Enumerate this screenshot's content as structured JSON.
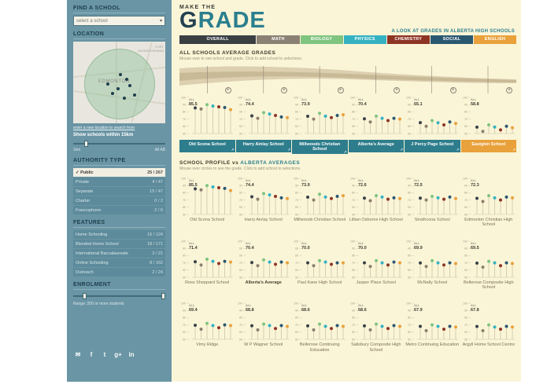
{
  "colors": {
    "sidebar_bg": "#6a95a4",
    "main_bg": "#fbf5d8",
    "teal": "#2a7f8e",
    "orange": "#e9a13b",
    "ribbon_light": "#dcd0b0",
    "ribbon_dark": "#c9ba97"
  },
  "subjects": [
    {
      "name": "overall",
      "color": "#3a4148"
    },
    {
      "name": "math",
      "color": "#8d7e6d"
    },
    {
      "name": "biology",
      "color": "#7fc47f"
    },
    {
      "name": "physics",
      "color": "#35b2c2"
    },
    {
      "name": "chemistry",
      "color": "#8e3424"
    },
    {
      "name": "social",
      "color": "#2b5871"
    },
    {
      "name": "english",
      "color": "#e9a13b"
    }
  ],
  "sidebar": {
    "find_school": {
      "title": "FIND A SCHOOL",
      "placeholder": "select a school"
    },
    "location": {
      "title": "LOCATION",
      "map_city": "EDMONTON",
      "map_region": "FORT SASKATCHEWAN",
      "new_location_link": "enter a new location to search from",
      "radius_text": "Show schools within 15km",
      "slider_min": "1km",
      "slider_max": "All AB"
    },
    "authority": {
      "title": "AUTHORITY TYPE",
      "items": [
        {
          "label": "Public",
          "count": "25 / 267",
          "checked": true
        },
        {
          "label": "Private",
          "count": "4 / 47",
          "checked": false
        },
        {
          "label": "Separate",
          "count": "15 / 47",
          "checked": false
        },
        {
          "label": "Charter",
          "count": "0 / 2",
          "checked": false
        },
        {
          "label": "Francophone",
          "count": "2 / 6",
          "checked": false
        }
      ]
    },
    "features": {
      "title": "FEATURES",
      "items": [
        {
          "label": "Home Schooling",
          "count": "16 / 124",
          "checked": false
        },
        {
          "label": "Blended Home School",
          "count": "18 / 171",
          "checked": false
        },
        {
          "label": "International Baccalaureate",
          "count": "3 / 21",
          "checked": false
        },
        {
          "label": "Online Schooling",
          "count": "8 / 162",
          "checked": false
        },
        {
          "label": "Outreach",
          "count": "2 / 24",
          "checked": false
        }
      ]
    },
    "enrolment": {
      "title": "ENROLMENT",
      "range_text": "Range: 200 or more students"
    },
    "social": [
      {
        "name": "email",
        "glyph": "✉"
      },
      {
        "name": "facebook",
        "glyph": "f"
      },
      {
        "name": "twitter",
        "glyph": "t"
      },
      {
        "name": "google-plus",
        "glyph": "g+"
      },
      {
        "name": "linkedin",
        "glyph": "in"
      }
    ]
  },
  "header": {
    "title_small": "MAKE THE",
    "title_letters": [
      {
        "char": "G",
        "color": "#23404f"
      },
      {
        "char": "R",
        "color": "#2a7f8e"
      },
      {
        "char": "A",
        "color": "#2a7f8e"
      },
      {
        "char": "D",
        "color": "#2a7f8e"
      },
      {
        "char": "E",
        "color": "#2a7f8e"
      }
    ],
    "subtitle": "A LOOK AT GRADES IN ALBERTA HIGH SCHOOLS",
    "tabs": [
      {
        "label": "OVERALL",
        "color": "#3a3f42",
        "active": true
      },
      {
        "label": "MATH",
        "color": "#8a8073",
        "active": false
      },
      {
        "label": "BIOLOGY",
        "color": "#7fc47f",
        "active": false
      },
      {
        "label": "PHYSICS",
        "color": "#35b2c2",
        "active": false
      },
      {
        "label": "CHEMISTRY",
        "color": "#8e3424",
        "active": false
      },
      {
        "label": "SOCIAL",
        "color": "#2b5871",
        "active": false
      },
      {
        "label": "ENGLISH",
        "color": "#e9a13b",
        "active": false
      }
    ]
  },
  "top_chart": {
    "title": "ALL SCHOOLS AVERAGE GRADES",
    "hint": "Mouse over to see school and grade. Click to add school to selections.",
    "label_all": "ALL",
    "selected_schools": [
      {
        "name": "Old Scona School",
        "value": "85.5",
        "dots": [
          85.5,
          84,
          90,
          88,
          87,
          86,
          83
        ],
        "highlight": false
      },
      {
        "name": "Harry Ainlay School",
        "value": "74.4",
        "dots": [
          74.4,
          71,
          79,
          77,
          75,
          73,
          72
        ],
        "highlight": false
      },
      {
        "name": "Millwoods Christian School",
        "value": "73.9",
        "dots": [
          73.9,
          70,
          78,
          74,
          72,
          75,
          76
        ],
        "highlight": false
      },
      {
        "name": "Alberta's Average",
        "value": "70.4",
        "dots": [
          70.4,
          66,
          74,
          71,
          68,
          71,
          70
        ],
        "highlight": false
      },
      {
        "name": "J Percy Page School",
        "value": "65.1",
        "dots": [
          65.1,
          60,
          68,
          65,
          62,
          66,
          64
        ],
        "highlight": false
      },
      {
        "name": "Eastglen School",
        "value": "58.8",
        "dots": [
          58.8,
          53,
          62,
          59,
          55,
          60,
          58
        ],
        "highlight": true
      }
    ]
  },
  "profile_section": {
    "title_prefix": "SCHOOL PROFILE vs",
    "title_highlight": "ALBERTA AVERAGES",
    "hint": "Mouse over circles to see the grade. Click to add school to selections.",
    "y_ticks": [
      100,
      90,
      80,
      70,
      60,
      50
    ],
    "schools": [
      {
        "name": "Old Scona School",
        "value": "85.5",
        "dots": [
          85.5,
          84,
          90,
          88,
          87,
          86,
          83
        ],
        "emphasis": false
      },
      {
        "name": "Harry Ainlay School",
        "value": "74.4",
        "dots": [
          74.4,
          71,
          79,
          77,
          75,
          73,
          72
        ],
        "emphasis": false
      },
      {
        "name": "Millwoods Christian School",
        "value": "73.9",
        "dots": [
          73.9,
          70,
          78,
          74,
          72,
          75,
          76
        ],
        "emphasis": false
      },
      {
        "name": "Lillian Osborne High School",
        "value": "72.6",
        "dots": [
          72.6,
          69,
          76,
          74,
          71,
          73,
          72
        ],
        "emphasis": false
      },
      {
        "name": "Strathcona School",
        "value": "72.5",
        "dots": [
          72.5,
          70,
          75,
          73,
          71,
          74,
          72
        ],
        "emphasis": false
      },
      {
        "name": "Edmonton Christian High School",
        "value": "72.3",
        "dots": [
          72.3,
          68,
          76,
          73,
          70,
          74,
          73
        ],
        "emphasis": false
      },
      {
        "name": "Ross Sheppard School",
        "value": "71.4",
        "dots": [
          71.4,
          67,
          75,
          72,
          69,
          72,
          71
        ],
        "emphasis": false
      },
      {
        "name": "Alberta's Average",
        "value": "70.4",
        "dots": [
          70.4,
          66,
          74,
          71,
          68,
          71,
          70
        ],
        "emphasis": true
      },
      {
        "name": "Paul Kane High School",
        "value": "70.0",
        "dots": [
          70.0,
          66,
          73,
          71,
          68,
          70,
          70
        ],
        "emphasis": false
      },
      {
        "name": "Jasper Place School",
        "value": "70.0",
        "dots": [
          70.0,
          65,
          73,
          70,
          67,
          71,
          70
        ],
        "emphasis": false
      },
      {
        "name": "McNally School",
        "value": "69.9",
        "dots": [
          69.9,
          65,
          73,
          70,
          67,
          70,
          69
        ],
        "emphasis": false
      },
      {
        "name": "Bellerose Composite High School",
        "value": "69.5",
        "dots": [
          69.5,
          64,
          72,
          70,
          66,
          70,
          69
        ],
        "emphasis": false
      },
      {
        "name": "Vimy Ridge",
        "value": "69.4",
        "dots": [
          69.4,
          64,
          72,
          69,
          66,
          70,
          69
        ],
        "emphasis": false
      },
      {
        "name": "W P Wagner School",
        "value": "68.8",
        "dots": [
          68.8,
          63,
          71,
          69,
          65,
          69,
          68
        ],
        "emphasis": false
      },
      {
        "name": "Bellerose Continuing Education",
        "value": "68.6",
        "dots": [
          68.6,
          63,
          71,
          68,
          65,
          69,
          68
        ],
        "emphasis": false
      },
      {
        "name": "Salisbury Composite High School",
        "value": "68.6",
        "dots": [
          68.6,
          63,
          71,
          68,
          65,
          69,
          68
        ],
        "emphasis": false
      },
      {
        "name": "Metro Continuing Education",
        "value": "67.9",
        "dots": [
          67.9,
          62,
          70,
          68,
          64,
          68,
          67
        ],
        "emphasis": false
      },
      {
        "name": "Argyll Home School Centre",
        "value": "67.8",
        "dots": [
          67.8,
          62,
          70,
          67,
          64,
          68,
          67
        ],
        "emphasis": false
      }
    ]
  }
}
